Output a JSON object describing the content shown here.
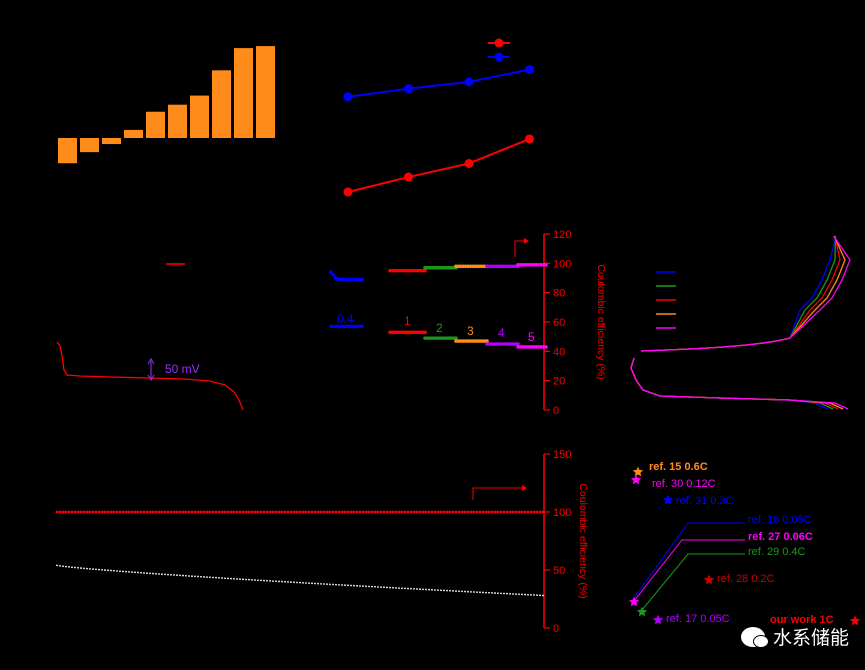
{
  "chart_data": [
    {
      "type": "bar",
      "title": "",
      "values": [
        -2.5,
        -1.4,
        -0.6,
        0.8,
        2.6,
        3.3,
        4.2,
        6.7,
        8.9,
        9.1
      ],
      "bar_color": "#ff8c1a"
    },
    {
      "type": "line",
      "x": [
        1,
        2,
        3,
        4
      ],
      "series": [
        {
          "color": "#0000ff",
          "values": [
            8.0,
            8.6,
            9.1,
            10.0
          ]
        },
        {
          "color": "#ff0000",
          "values": [
            1.0,
            2.1,
            3.1,
            4.9
          ]
        }
      ]
    },
    {
      "type": "line",
      "annotation": "50 mV",
      "color": "#ff0000"
    },
    {
      "type": "scatter",
      "ylabel": "Coulombic efficiency (%)",
      "ylim": [
        0,
        120
      ],
      "y_ticks": [
        "0",
        "20",
        "40",
        "60",
        "80",
        "100",
        "120"
      ],
      "segment_labels": [
        "0.4",
        "1",
        "2",
        "3",
        "4",
        "5"
      ],
      "segments": [
        {
          "label": "0.4",
          "color": "#0000ff",
          "ce": 89,
          "cap": 57
        },
        {
          "label": "1",
          "color": "#ff0000",
          "ce": 95,
          "cap": 53
        },
        {
          "label": "2",
          "color": "#1a9a1a",
          "ce": 97,
          "cap": 49
        },
        {
          "label": "3",
          "color": "#ff8c1a",
          "ce": 98,
          "cap": 47
        },
        {
          "label": "4",
          "color": "#b000ff",
          "ce": 98,
          "cap": 45
        },
        {
          "label": "5",
          "color": "#ff00ff",
          "ce": 99,
          "cap": 43
        }
      ]
    },
    {
      "type": "line",
      "legend_colors": [
        "#0000ff",
        "#1a9a1a",
        "#ff0000",
        "#ff8c1a",
        "#ff00ff"
      ]
    },
    {
      "type": "scatter",
      "ylabel": "Coulombic efficiency (%)",
      "ylim": [
        0,
        150
      ],
      "y_ticks": [
        "0",
        "50",
        "100",
        "150"
      ],
      "ce_value": 100,
      "capacity_start": 54,
      "capacity_end": 28
    },
    {
      "type": "scatter",
      "references": [
        {
          "text": "ref. 15 0.6C",
          "color": "#ff8c1a"
        },
        {
          "text": "ref. 30 0.12C",
          "color": "#ff00ff"
        },
        {
          "text": "ref. 31 0.3C",
          "color": "#0000ff"
        },
        {
          "text": "ref. 16 0.05C",
          "color": "#0000ff"
        },
        {
          "text": "ref. 27 0.06C",
          "color": "#ff00ff"
        },
        {
          "text": "ref. 29 0.4C",
          "color": "#1a9a1a"
        },
        {
          "text": "ref. 28 0.2C",
          "color": "#cc0000"
        },
        {
          "text": "ref. 17 0.05C",
          "color": "#b000ff"
        },
        {
          "text": "our work 1C",
          "color": "#ff0000"
        }
      ]
    }
  ],
  "watermark": "水系储能"
}
